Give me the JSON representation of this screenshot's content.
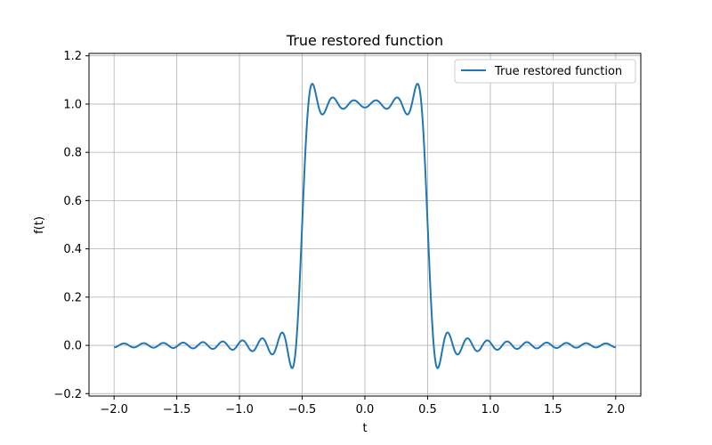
{
  "chart_data": {
    "type": "line",
    "title": "True restored function",
    "xlabel": "t",
    "ylabel": "f(t)",
    "xlim": [
      -2.2,
      2.2
    ],
    "ylim": [
      -0.21,
      1.21
    ],
    "xticks": [
      -2.0,
      -1.5,
      -1.0,
      -0.5,
      0.0,
      0.5,
      1.0,
      1.5,
      2.0
    ],
    "xtick_labels": [
      "−2.0",
      "−1.5",
      "−1.0",
      "−0.5",
      "0.0",
      "0.5",
      "1.0",
      "1.5",
      "2.0"
    ],
    "yticks": [
      -0.2,
      0.0,
      0.2,
      0.4,
      0.6,
      0.8,
      1.0,
      1.2
    ],
    "ytick_labels": [
      "−0.2",
      "0.0",
      "0.2",
      "0.4",
      "0.6",
      "0.8",
      "1.0",
      "1.2"
    ],
    "grid": true,
    "legend_position": "top-right",
    "series": [
      {
        "name": "True restored function",
        "color": "#1f77b4",
        "description_points": {
          "x": [
            -2.0,
            -0.9,
            -0.8,
            -0.7,
            -0.62,
            -0.57,
            -0.53,
            -0.51,
            -0.5,
            -0.49,
            -0.47,
            -0.45,
            -0.42,
            -0.38,
            -0.3,
            -0.2,
            0.0,
            0.2,
            0.3,
            0.38,
            0.42,
            0.45,
            0.47,
            0.49,
            0.5,
            0.51,
            0.53,
            0.57,
            0.62,
            0.7,
            0.8,
            0.9,
            2.0
          ],
          "y": [
            0.0,
            0.0,
            0.0,
            0.01,
            0.02,
            0.04,
            -0.08,
            0.5,
            0.5,
            1.09,
            0.92,
            1.04,
            0.96,
            1.02,
            1.01,
            1.0,
            1.0,
            1.0,
            1.01,
            1.02,
            0.96,
            1.04,
            0.92,
            1.09,
            0.5,
            -0.08,
            0.04,
            0.02,
            0.01,
            0.0,
            0.0,
            0.0,
            0.0
          ]
        }
      }
    ]
  }
}
